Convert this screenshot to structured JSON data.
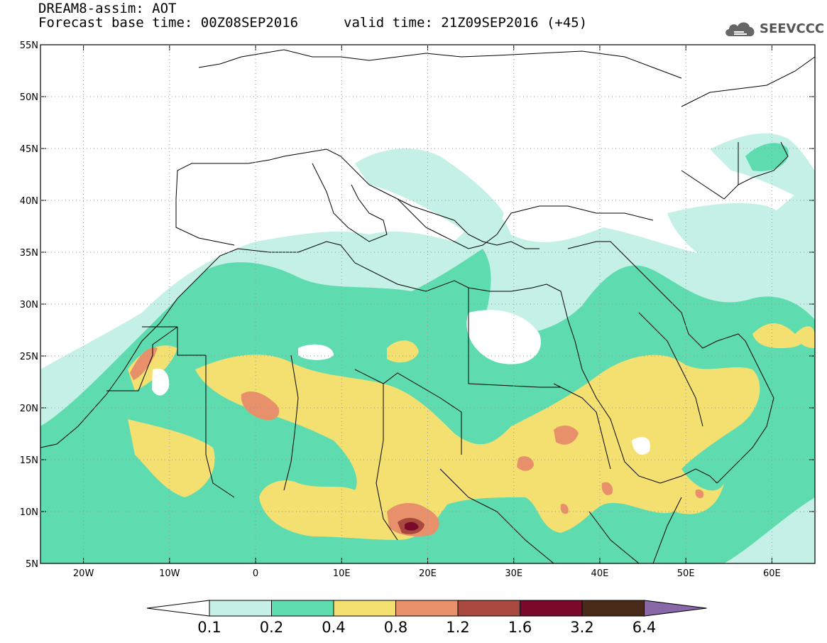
{
  "header": {
    "title": "DREAM8-assim: AOT",
    "base_time": "Forecast base time: 00Z08SEP2016",
    "valid_time": "valid time: 21Z09SEP2016 (+45)"
  },
  "logo": {
    "text": "SEEVCCC",
    "icon": "cloud-icon",
    "color": "#555555"
  },
  "map": {
    "lon_range": [
      -25,
      65
    ],
    "lat_range": [
      5,
      55
    ],
    "lon_ticks": [
      "20W",
      "10W",
      "0",
      "10E",
      "20E",
      "30E",
      "40E",
      "50E",
      "60E"
    ],
    "lon_tick_values": [
      -20,
      -10,
      0,
      10,
      20,
      30,
      40,
      50,
      60
    ],
    "lat_ticks": [
      "5N",
      "10N",
      "15N",
      "20N",
      "25N",
      "30N",
      "35N",
      "40N",
      "45N",
      "50N",
      "55N"
    ],
    "lat_tick_values": [
      5,
      10,
      15,
      20,
      25,
      30,
      35,
      40,
      45,
      50,
      55
    ]
  },
  "colorbar": {
    "labels": [
      "0.1",
      "0.2",
      "0.4",
      "0.8",
      "1.2",
      "1.6",
      "3.2",
      "6.4"
    ],
    "colors": [
      "#c4f0e8",
      "#5fdcaf",
      "#f4e070",
      "#e8906a",
      "#a8483e",
      "#7a0a2a",
      "#4a2a18"
    ],
    "under_color": "#ffffff",
    "over_color": "#8a68a8"
  }
}
